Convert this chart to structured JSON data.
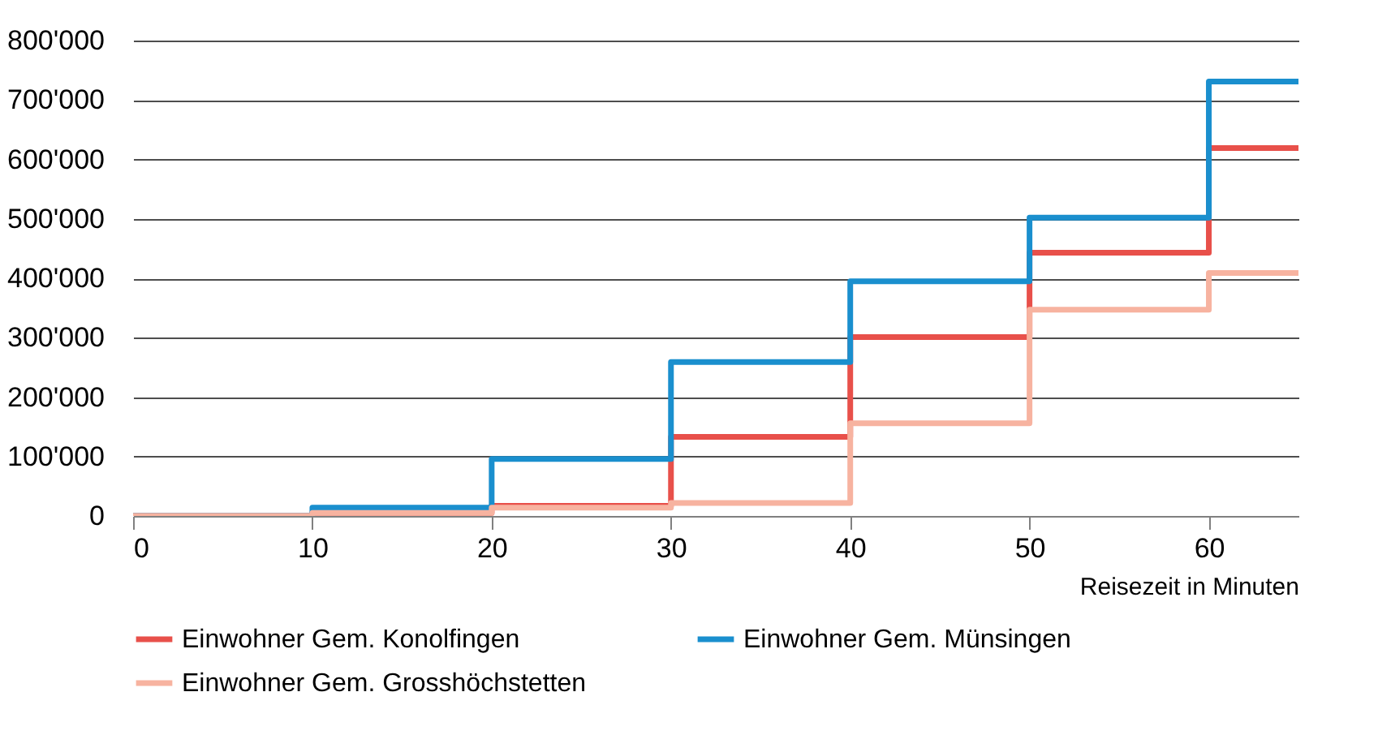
{
  "chart_data": {
    "type": "step",
    "xlabel": "Reisezeit in Minuten",
    "x": [
      0,
      10,
      20,
      30,
      40,
      50,
      60,
      65
    ],
    "series": [
      {
        "name": "Einwohner Gem. Konolfingen",
        "color": "#e8504a",
        "values": [
          0,
          5000,
          17000,
          133000,
          301000,
          443000,
          619000,
          619000
        ]
      },
      {
        "name": "Einwohner Gem. Münsingen",
        "color": "#1a8fce",
        "values": [
          0,
          14000,
          96000,
          259000,
          395000,
          502000,
          731000,
          731000
        ]
      },
      {
        "name": "Einwohner Gem. Grosshöchstetten",
        "color": "#f7b3a0",
        "values": [
          0,
          5000,
          14000,
          22000,
          156000,
          347000,
          409000,
          409000
        ]
      }
    ],
    "xlim": [
      0,
      65
    ],
    "xticks": [
      0,
      10,
      20,
      30,
      40,
      50,
      60
    ],
    "ylim": [
      0,
      800000
    ],
    "yticks": [
      0,
      {
        "value": 100000,
        "label": "100'000"
      },
      {
        "value": 200000,
        "label": "200'000"
      },
      {
        "value": 300000,
        "label": "300'000"
      },
      {
        "value": 400000,
        "label": "400'000"
      },
      {
        "value": 500000,
        "label": "500'000"
      },
      {
        "value": 600000,
        "label": "600'000"
      },
      {
        "value": 700000,
        "label": "700'000"
      },
      {
        "value": 800000,
        "label": "800'000"
      }
    ],
    "grid": "y",
    "legend": "bottom",
    "line_style": "solid"
  }
}
